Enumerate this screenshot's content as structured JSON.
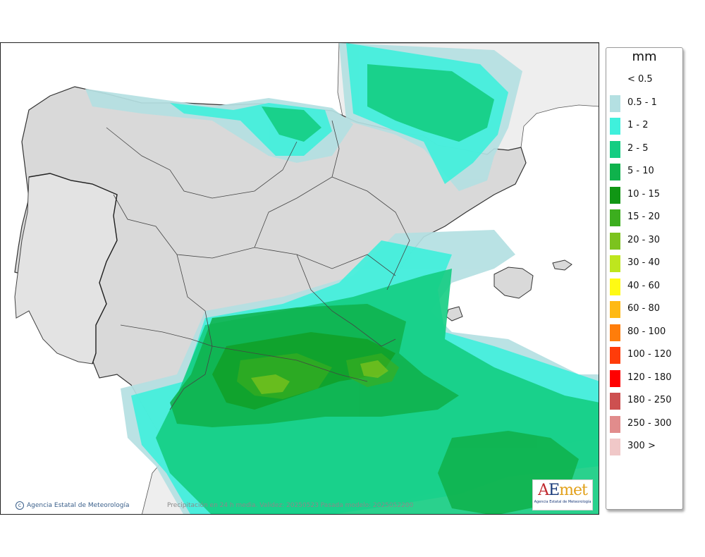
{
  "legend": {
    "title": "mm",
    "entries": [
      {
        "label": "< 0.5",
        "color": "#ffffff"
      },
      {
        "label": "0.5 - 1",
        "color": "#b4e0e2"
      },
      {
        "label": "1 - 2",
        "color": "#3ff0dc"
      },
      {
        "label": "2 - 5",
        "color": "#14cd82"
      },
      {
        "label": "5 - 10",
        "color": "#0fb24c"
      },
      {
        "label": "10 - 15",
        "color": "#109614"
      },
      {
        "label": "15 - 20",
        "color": "#3cae1e"
      },
      {
        "label": "20 - 30",
        "color": "#7cc31e"
      },
      {
        "label": "30 - 40",
        "color": "#bee61e"
      },
      {
        "label": "40 - 60",
        "color": "#fffa14"
      },
      {
        "label": "60 - 80",
        "color": "#ffb914"
      },
      {
        "label": "80 - 100",
        "color": "#ff7d0a"
      },
      {
        "label": "100 - 120",
        "color": "#ff3c0a"
      },
      {
        "label": "120 - 180",
        "color": "#ff0000"
      },
      {
        "label": "180 - 250",
        "color": "#cd5050"
      },
      {
        "label": "250 - 300",
        "color": "#e18c8c"
      },
      {
        "label": "300 >",
        "color": "#f0c8c8"
      }
    ]
  },
  "footer": {
    "credit": "Agencia Estatal de Meteorología",
    "validity": "Precipitación en 24 h media. Validez: 20250523 Pasada modelo: 2025052200"
  },
  "logo": {
    "text": "AEmet",
    "subtitle": "Agencia Estatal de Meteorología"
  },
  "colors": {
    "land": "#d9d9d9",
    "sea": "#ffffff",
    "neighbor": "#eeeeee",
    "border": "#333333"
  }
}
